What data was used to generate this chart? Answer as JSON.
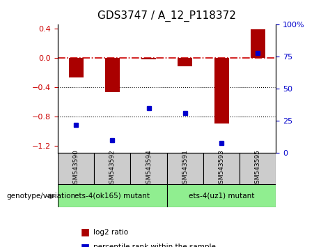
{
  "title": "GDS3747 / A_12_P118372",
  "samples": [
    "GSM543590",
    "GSM543592",
    "GSM543594",
    "GSM543591",
    "GSM543593",
    "GSM543595"
  ],
  "log2_ratio": [
    -0.27,
    -0.47,
    -0.02,
    -0.12,
    -0.9,
    0.39
  ],
  "percentile_rank": [
    22,
    10,
    35,
    31,
    8,
    78
  ],
  "groups": [
    {
      "label": "ets-4(ok165) mutant",
      "indices": [
        0,
        1,
        2
      ],
      "color": "#90EE90"
    },
    {
      "label": "ets-4(uz1) mutant",
      "indices": [
        3,
        4,
        5
      ],
      "color": "#90EE90"
    }
  ],
  "ylim_left": [
    -1.3,
    0.45
  ],
  "ylim_right": [
    0,
    100
  ],
  "bar_color": "#AA0000",
  "dot_color": "#0000CC",
  "zero_line_color": "#CC0000",
  "dotted_line_color": "#000000",
  "background_plot": "#FFFFFF",
  "background_sample": "#CCCCCC",
  "tick_color_left": "#CC0000",
  "tick_color_right": "#0000CC",
  "legend_items": [
    "log2 ratio",
    "percentile rank within the sample"
  ]
}
